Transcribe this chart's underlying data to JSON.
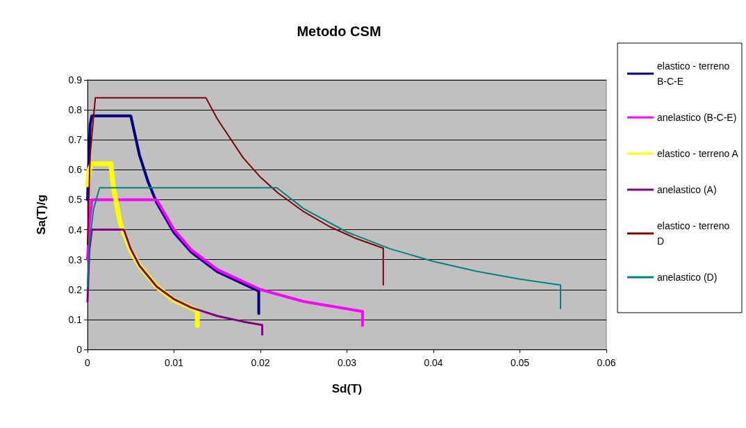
{
  "chart_data": {
    "type": "line",
    "title": "Metodo CSM",
    "xlabel": "Sd(T)",
    "ylabel": "Sa(T)/g",
    "xlim": [
      0,
      0.06
    ],
    "xticks": [
      0,
      0.01,
      0.02,
      0.03,
      0.04,
      0.05,
      0.06
    ],
    "ylim": [
      0,
      0.9
    ],
    "yticks": [
      0,
      0.1,
      0.2,
      0.3,
      0.4,
      0.5,
      0.6,
      0.7,
      0.8,
      0.9
    ],
    "grid": "y",
    "legend": "right",
    "marker": "none",
    "line_style": "solid",
    "series": [
      {
        "name": "elastico - terreno B-C-E",
        "color": "#000080",
        "x": [
          0,
          0.0003,
          0.0005,
          0.005,
          0.006,
          0.007,
          0.008,
          0.01,
          0.012,
          0.015,
          0.0198,
          0.0198
        ],
        "values": [
          0.5,
          0.75,
          0.78,
          0.78,
          0.65,
          0.56,
          0.49,
          0.39,
          0.325,
          0.26,
          0.195,
          0.12
        ]
      },
      {
        "name": "anelastico (B-C-E)",
        "color": "#ff00ff",
        "x": [
          0,
          0.0002,
          0.0005,
          0.008,
          0.01,
          0.012,
          0.015,
          0.02,
          0.025,
          0.0318,
          0.0318
        ],
        "values": [
          0.3,
          0.42,
          0.5,
          0.5,
          0.4,
          0.333,
          0.267,
          0.2,
          0.16,
          0.127,
          0.08
        ]
      },
      {
        "name": "elastico - terreno A",
        "color": "#ffff00",
        "x": [
          0,
          0.0002,
          0.0005,
          0.0027,
          0.003,
          0.0038,
          0.005,
          0.006,
          0.008,
          0.01,
          0.0127,
          0.0127
        ],
        "values": [
          0.55,
          0.6,
          0.62,
          0.62,
          0.54,
          0.42,
          0.33,
          0.28,
          0.21,
          0.165,
          0.13,
          0.08
        ]
      },
      {
        "name": "anelastico (A)",
        "color": "#800080",
        "x": [
          0,
          0.0002,
          0.0005,
          0.0042,
          0.005,
          0.006,
          0.008,
          0.01,
          0.012,
          0.015,
          0.018,
          0.0202,
          0.0202
        ],
        "values": [
          0.16,
          0.33,
          0.4,
          0.4,
          0.336,
          0.28,
          0.21,
          0.168,
          0.14,
          0.112,
          0.093,
          0.082,
          0.05
        ]
      },
      {
        "name": "elastico - terreno D",
        "color": "#800000",
        "x": [
          0,
          0.0003,
          0.0009,
          0.0137,
          0.015,
          0.018,
          0.02,
          0.022,
          0.025,
          0.028,
          0.031,
          0.0342,
          0.0342
        ],
        "values": [
          0.35,
          0.65,
          0.84,
          0.84,
          0.77,
          0.64,
          0.575,
          0.523,
          0.46,
          0.41,
          0.371,
          0.338,
          0.216
        ]
      },
      {
        "name": "anelastico (D)",
        "color": "#008080",
        "x": [
          0,
          0.0002,
          0.0007,
          0.0014,
          0.0219,
          0.025,
          0.03,
          0.035,
          0.04,
          0.045,
          0.05,
          0.0547,
          0.0547
        ],
        "values": [
          0.21,
          0.35,
          0.47,
          0.54,
          0.54,
          0.47,
          0.392,
          0.336,
          0.294,
          0.261,
          0.235,
          0.215,
          0.137
        ]
      }
    ]
  }
}
